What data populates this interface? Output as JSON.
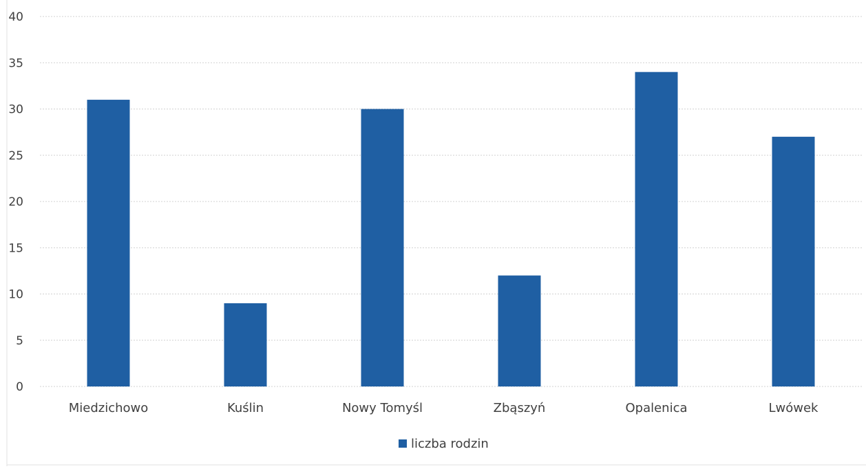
{
  "chart_data": {
    "type": "bar",
    "categories": [
      "Miedzichowo",
      "Kuślin",
      "Nowy Tomyśl",
      "Zbąszyń",
      "Opalenica",
      "Lwówek"
    ],
    "series": [
      {
        "name": "liczba rodzin",
        "values": [
          31,
          9,
          30,
          12,
          34,
          27
        ]
      }
    ],
    "title": "",
    "xlabel": "",
    "ylabel": "",
    "ylim": [
      0,
      40
    ],
    "yticks": [
      0,
      5,
      10,
      15,
      20,
      25,
      30,
      35,
      40
    ],
    "grid": true,
    "legend": "bottom-center",
    "bar_color": "#1f5fa3"
  }
}
